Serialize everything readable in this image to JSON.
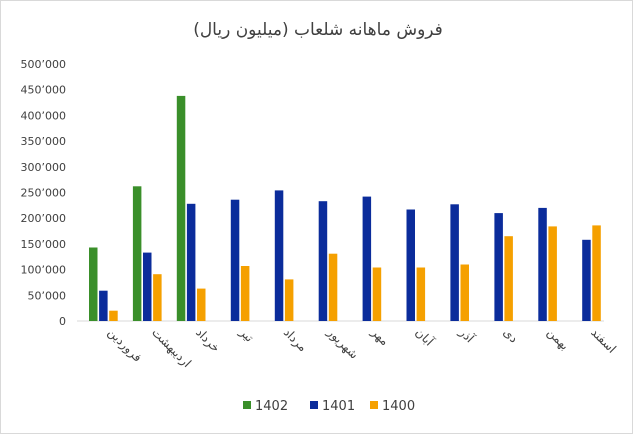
{
  "chart_data": {
    "type": "bar",
    "title": "فروش ماهانه شلعاب (میلیون ریال)",
    "categories": [
      "فروردین",
      "اردیبهشت",
      "خرداد",
      "تیر",
      "مرداد",
      "شهریور",
      "مهر",
      "آبان",
      "آذر",
      "دی",
      "بهمن",
      "اسفند"
    ],
    "series": [
      {
        "name": "1402",
        "color": "#3a8f2a",
        "values": [
          143000,
          262000,
          438000,
          null,
          null,
          null,
          null,
          null,
          null,
          null,
          null,
          null
        ]
      },
      {
        "name": "1401",
        "color": "#0b2c9b",
        "values": [
          59000,
          133000,
          228000,
          236000,
          254000,
          233000,
          242000,
          217000,
          227000,
          210000,
          220000,
          158000
        ]
      },
      {
        "name": "1400",
        "color": "#f5a000",
        "values": [
          20000,
          91000,
          63000,
          107000,
          81000,
          131000,
          104000,
          104000,
          110000,
          165000,
          184000,
          186000
        ]
      }
    ],
    "yticks": [
      "500٬000",
      "450٬000",
      "400٬000",
      "350٬000",
      "300٬000",
      "250٬000",
      "200٬000",
      "150٬000",
      "100٬000",
      "50٬000",
      "0"
    ],
    "ylim": [
      0,
      500000
    ],
    "grid": false,
    "legend": "bottom"
  }
}
